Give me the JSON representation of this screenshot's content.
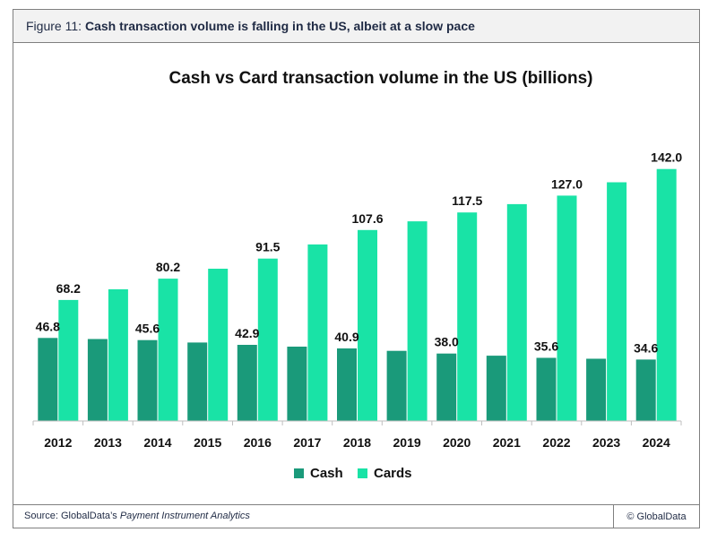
{
  "figure": {
    "label": "Figure 11:",
    "title": "Cash transaction volume is falling in the US, albeit at a slow pace"
  },
  "footer": {
    "source_prefix": "Source: GlobalData’s ",
    "source_name": "Payment Instrument Analytics",
    "copyright": "© GlobalData"
  },
  "colors": {
    "cash": "#1a9a7a",
    "cards": "#19e3a6"
  },
  "chart_data": {
    "type": "bar",
    "title": "Cash vs Card transaction volume in the US (billions)",
    "xlabel": "",
    "ylabel": "",
    "ylim": [
      0,
      160
    ],
    "grid": false,
    "legend": "bottom",
    "categories": [
      "2012",
      "2013",
      "2014",
      "2015",
      "2016",
      "2017",
      "2018",
      "2019",
      "2020",
      "2021",
      "2022",
      "2023",
      "2024"
    ],
    "series": [
      {
        "name": "Cash",
        "values": [
          46.8,
          46.2,
          45.6,
          44.2,
          42.9,
          41.9,
          40.9,
          39.5,
          38.0,
          36.8,
          35.6,
          35.1,
          34.6
        ],
        "labels": [
          "46.8",
          "",
          "45.6",
          "",
          "42.9",
          "",
          "40.9",
          "",
          "38.0",
          "",
          "35.6",
          "",
          "34.6"
        ]
      },
      {
        "name": "Cards",
        "values": [
          68.2,
          74.2,
          80.2,
          85.8,
          91.5,
          99.5,
          107.6,
          112.5,
          117.5,
          122.2,
          127.0,
          134.5,
          142.0
        ],
        "labels": [
          "68.2",
          "",
          "80.2",
          "",
          "91.5",
          "",
          "107.6",
          "",
          "117.5",
          "",
          "127.0",
          "",
          "142.0"
        ]
      }
    ]
  }
}
